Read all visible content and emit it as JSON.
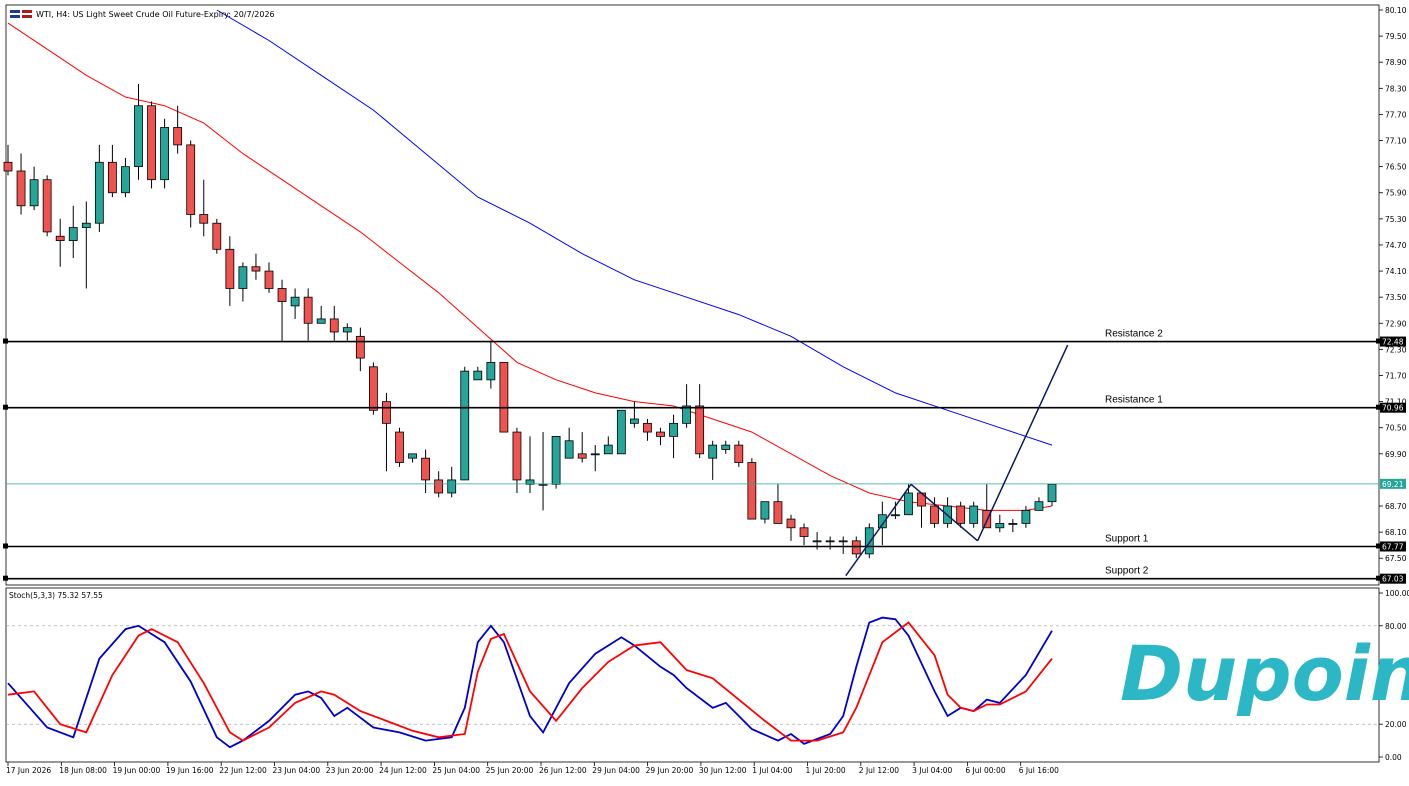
{
  "window": {
    "title": "WTI, H4:  US Light Sweet Crude Oil Future-Expiry: 20/7/2026"
  },
  "colors": {
    "bull": "#26a69a",
    "bear": "#ef5350",
    "ma_fast": "#ff0000",
    "ma_slow": "#0000ff",
    "stoch_k": "#0000cc",
    "stoch_d": "#ff0000",
    "current_price_line": "#26a69a",
    "logo": "#2bb7c6"
  },
  "logo": {
    "text": "Dupoin"
  },
  "chart_data": [
    {
      "type": "candlestick",
      "symbol": "WTI",
      "timeframe": "H4",
      "ylim": [
        67.0,
        80.1
      ],
      "y_ticks": [
        "80.10",
        "79.50",
        "78.90",
        "78.30",
        "77.70",
        "77.10",
        "76.50",
        "75.90",
        "75.30",
        "74.70",
        "74.10",
        "73.50",
        "72.90",
        "72.30",
        "71.70",
        "71.10",
        "70.50",
        "69.90",
        "68.70",
        "68.10",
        "67.50"
      ],
      "x_ticks": [
        "17 Jun 2026",
        "18 Jun 08:00",
        "19 Jun 00:00",
        "19 Jun 16:00",
        "22 Jun 12:00",
        "23 Jun 04:00",
        "23 Jun 20:00",
        "24 Jun 12:00",
        "25 Jun 04:00",
        "25 Jun 20:00",
        "26 Jun 12:00",
        "29 Jun 04:00",
        "29 Jun 20:00",
        "30 Jun 12:00",
        "1 Jul 04:00",
        "1 Jul 20:00",
        "2 Jul 12:00",
        "3 Jul 04:00",
        "6 Jul 00:00",
        "6 Jul 16:00"
      ],
      "candles": [
        [
          76.6,
          76.4,
          77.0,
          76.3
        ],
        [
          76.4,
          75.6,
          76.8,
          75.4
        ],
        [
          75.6,
          76.2,
          76.5,
          75.5
        ],
        [
          76.2,
          75.0,
          76.3,
          74.9
        ],
        [
          74.9,
          74.8,
          75.3,
          74.2
        ],
        [
          74.8,
          75.1,
          75.6,
          74.4
        ],
        [
          75.1,
          75.2,
          75.7,
          73.7
        ],
        [
          75.2,
          76.6,
          77.0,
          75.0
        ],
        [
          76.6,
          75.9,
          77.0,
          75.8
        ],
        [
          75.9,
          76.5,
          76.7,
          75.8
        ],
        [
          76.5,
          77.9,
          78.4,
          76.2
        ],
        [
          77.9,
          76.2,
          78.0,
          76.0
        ],
        [
          76.2,
          77.4,
          77.6,
          76.0
        ],
        [
          77.4,
          77.0,
          77.9,
          76.8
        ],
        [
          77.0,
          75.4,
          77.1,
          75.1
        ],
        [
          75.4,
          75.2,
          76.2,
          74.9
        ],
        [
          75.2,
          74.6,
          75.3,
          74.5
        ],
        [
          74.6,
          73.7,
          74.9,
          73.3
        ],
        [
          73.7,
          74.2,
          74.3,
          73.4
        ],
        [
          74.2,
          74.1,
          74.5,
          73.9
        ],
        [
          74.1,
          73.7,
          74.3,
          73.6
        ],
        [
          73.7,
          73.4,
          73.9,
          72.5
        ],
        [
          73.3,
          73.5,
          73.7,
          73.0
        ],
        [
          73.5,
          72.9,
          73.7,
          72.5
        ],
        [
          72.9,
          73.0,
          73.3,
          72.9
        ],
        [
          73.0,
          72.7,
          73.3,
          72.5
        ],
        [
          72.7,
          72.8,
          72.9,
          72.5
        ],
        [
          72.6,
          72.1,
          72.8,
          71.8
        ],
        [
          71.9,
          70.9,
          72.0,
          70.8
        ],
        [
          71.1,
          70.6,
          71.3,
          69.5
        ],
        [
          70.4,
          69.7,
          70.5,
          69.6
        ],
        [
          69.8,
          69.9,
          69.9,
          69.7
        ],
        [
          69.8,
          69.3,
          70.0,
          69.0
        ],
        [
          69.3,
          69.0,
          69.5,
          68.9
        ],
        [
          69.0,
          69.3,
          69.6,
          68.9
        ],
        [
          69.3,
          71.8,
          71.9,
          69.3
        ],
        [
          71.6,
          71.8,
          71.9,
          71.6
        ],
        [
          71.6,
          72.0,
          72.5,
          71.4
        ],
        [
          72.0,
          70.4,
          72.0,
          70.4
        ],
        [
          70.4,
          69.3,
          70.5,
          69.0
        ],
        [
          69.2,
          69.3,
          70.3,
          69.0
        ],
        [
          69.2,
          69.2,
          70.4,
          68.6
        ],
        [
          69.2,
          70.3,
          70.3,
          69.1
        ],
        [
          69.8,
          70.2,
          70.5,
          69.9
        ],
        [
          69.9,
          69.8,
          70.4,
          69.7
        ],
        [
          69.9,
          69.9,
          70.1,
          69.5
        ],
        [
          69.9,
          70.1,
          70.3,
          69.9
        ],
        [
          69.9,
          70.9,
          70.9,
          69.9
        ],
        [
          70.6,
          70.7,
          71.1,
          70.5
        ],
        [
          70.6,
          70.4,
          70.7,
          70.2
        ],
        [
          70.4,
          70.3,
          70.5,
          70.1
        ],
        [
          70.3,
          70.6,
          70.8,
          69.8
        ],
        [
          70.6,
          71.0,
          71.5,
          70.5
        ],
        [
          71.0,
          69.9,
          71.5,
          69.8
        ],
        [
          69.8,
          70.1,
          70.2,
          69.3
        ],
        [
          70.0,
          70.1,
          70.2,
          69.9
        ],
        [
          70.1,
          69.7,
          70.2,
          69.6
        ],
        [
          69.7,
          68.4,
          69.8,
          68.4
        ],
        [
          68.4,
          68.8,
          68.8,
          68.3
        ],
        [
          68.8,
          68.3,
          69.2,
          68.3
        ],
        [
          68.4,
          68.2,
          68.5,
          67.9
        ],
        [
          68.2,
          68.0,
          68.3,
          67.8
        ],
        [
          67.9,
          67.9,
          68.1,
          67.7
        ],
        [
          67.9,
          67.9,
          68.0,
          67.7
        ],
        [
          67.9,
          67.9,
          68.0,
          67.6
        ],
        [
          67.9,
          67.6,
          68.0,
          67.5
        ],
        [
          67.6,
          68.2,
          68.3,
          67.5
        ],
        [
          68.2,
          68.5,
          68.8,
          67.8
        ],
        [
          68.5,
          68.5,
          68.8,
          68.4
        ],
        [
          68.5,
          69.0,
          69.2,
          68.5
        ],
        [
          69.0,
          68.7,
          69.0,
          68.2
        ],
        [
          68.7,
          68.3,
          68.9,
          68.2
        ],
        [
          68.3,
          68.7,
          68.9,
          68.2
        ],
        [
          68.7,
          68.3,
          68.8,
          68.2
        ],
        [
          68.3,
          68.7,
          68.8,
          68.2
        ],
        [
          68.6,
          68.2,
          69.2,
          68.2
        ],
        [
          68.2,
          68.3,
          68.5,
          68.1
        ],
        [
          68.3,
          68.3,
          68.4,
          68.1
        ],
        [
          68.3,
          68.6,
          68.7,
          68.2
        ],
        [
          68.6,
          68.8,
          68.9,
          68.6
        ],
        [
          68.8,
          69.2,
          69.2,
          68.7
        ]
      ],
      "ma_fast": [
        [
          0,
          79.8
        ],
        [
          3,
          79.2
        ],
        [
          6,
          78.6
        ],
        [
          9,
          78.1
        ],
        [
          12,
          77.9
        ],
        [
          15,
          77.5
        ],
        [
          18,
          76.8
        ],
        [
          21,
          76.2
        ],
        [
          24,
          75.6
        ],
        [
          27,
          75.0
        ],
        [
          30,
          74.3
        ],
        [
          33,
          73.6
        ],
        [
          36,
          72.8
        ],
        [
          39,
          72.0
        ],
        [
          42,
          71.6
        ],
        [
          45,
          71.3
        ],
        [
          48,
          71.1
        ],
        [
          51,
          71.0
        ],
        [
          54,
          70.7
        ],
        [
          57,
          70.4
        ],
        [
          60,
          69.9
        ],
        [
          63,
          69.4
        ],
        [
          66,
          69.0
        ],
        [
          69,
          68.8
        ],
        [
          72,
          68.7
        ],
        [
          75,
          68.6
        ],
        [
          78,
          68.6
        ],
        [
          80,
          68.7
        ]
      ],
      "ma_slow": [
        [
          16,
          80.1
        ],
        [
          20,
          79.4
        ],
        [
          24,
          78.6
        ],
        [
          28,
          77.8
        ],
        [
          32,
          76.8
        ],
        [
          36,
          75.8
        ],
        [
          40,
          75.2
        ],
        [
          44,
          74.5
        ],
        [
          48,
          73.9
        ],
        [
          52,
          73.5
        ],
        [
          56,
          73.1
        ],
        [
          60,
          72.6
        ],
        [
          64,
          71.9
        ],
        [
          68,
          71.3
        ],
        [
          72,
          70.9
        ],
        [
          76,
          70.5
        ],
        [
          80,
          70.1
        ]
      ],
      "levels": [
        {
          "label": "Resistance 2",
          "price": 72.48,
          "tag": "72.48"
        },
        {
          "label": "Resistance 1",
          "price": 70.96,
          "tag": "70.96"
        },
        {
          "label": "Support 1",
          "price": 67.77,
          "tag": "67.77"
        },
        {
          "label": "Support 2",
          "price": 67.03,
          "tag": "67.03"
        }
      ],
      "current_price": {
        "price": 69.21,
        "tag": "69.21"
      },
      "pattern_lines": [
        [
          [
            64.2,
            67.1
          ],
          [
            69.2,
            69.2
          ]
        ],
        [
          [
            69.2,
            69.2
          ],
          [
            74.3,
            67.9
          ]
        ],
        [
          [
            74.3,
            67.9
          ],
          [
            81.2,
            72.4
          ]
        ]
      ]
    },
    {
      "type": "line",
      "label": "Stoch(5,3,3) 75.32 57.55",
      "ylim": [
        0,
        100
      ],
      "y_ticks": [
        "100.00",
        "80.00",
        "20.00",
        "0.00"
      ],
      "levels": [
        80,
        20
      ],
      "series": [
        {
          "values": [
            [
              0,
              45
            ],
            [
              3,
              18
            ],
            [
              5,
              12
            ],
            [
              7,
              60
            ],
            [
              9,
              78
            ],
            [
              10,
              80
            ],
            [
              12,
              70
            ],
            [
              14,
              46
            ],
            [
              16,
              12
            ],
            [
              17,
              6
            ],
            [
              18,
              10
            ],
            [
              20,
              22
            ],
            [
              22,
              38
            ],
            [
              23,
              40
            ],
            [
              24,
              36
            ],
            [
              25,
              25
            ],
            [
              26,
              30
            ],
            [
              28,
              18
            ],
            [
              30,
              15
            ],
            [
              32,
              10
            ],
            [
              34,
              12
            ],
            [
              35,
              30
            ],
            [
              36,
              70
            ],
            [
              37,
              80
            ],
            [
              38,
              70
            ],
            [
              40,
              25
            ],
            [
              41,
              15
            ],
            [
              43,
              45
            ],
            [
              45,
              63
            ],
            [
              47,
              73
            ],
            [
              48,
              68
            ],
            [
              50,
              55
            ],
            [
              51,
              50
            ],
            [
              52,
              42
            ],
            [
              54,
              30
            ],
            [
              55,
              33
            ],
            [
              57,
              17
            ],
            [
              59,
              10
            ],
            [
              60,
              14
            ],
            [
              61,
              8
            ],
            [
              63,
              14
            ],
            [
              64,
              25
            ],
            [
              65,
              55
            ],
            [
              66,
              82
            ],
            [
              67,
              85
            ],
            [
              68,
              84
            ],
            [
              69,
              74
            ],
            [
              71,
              40
            ],
            [
              72,
              25
            ],
            [
              73,
              30
            ],
            [
              74,
              28
            ],
            [
              75,
              35
            ],
            [
              76,
              33
            ],
            [
              78,
              50
            ],
            [
              80,
              77
            ]
          ]
        },
        {
          "values": [
            [
              0,
              38
            ],
            [
              2,
              40
            ],
            [
              4,
              20
            ],
            [
              6,
              15
            ],
            [
              8,
              50
            ],
            [
              10,
              74
            ],
            [
              11,
              78
            ],
            [
              13,
              70
            ],
            [
              15,
              45
            ],
            [
              17,
              15
            ],
            [
              18,
              10
            ],
            [
              20,
              18
            ],
            [
              22,
              33
            ],
            [
              24,
              40
            ],
            [
              25,
              38
            ],
            [
              27,
              28
            ],
            [
              29,
              22
            ],
            [
              31,
              16
            ],
            [
              33,
              12
            ],
            [
              35,
              14
            ],
            [
              36,
              52
            ],
            [
              37,
              72
            ],
            [
              38,
              75
            ],
            [
              40,
              40
            ],
            [
              42,
              22
            ],
            [
              44,
              42
            ],
            [
              46,
              58
            ],
            [
              48,
              68
            ],
            [
              50,
              70
            ],
            [
              52,
              53
            ],
            [
              54,
              48
            ],
            [
              56,
              35
            ],
            [
              58,
              22
            ],
            [
              59,
              16
            ],
            [
              60,
              10
            ],
            [
              62,
              10
            ],
            [
              64,
              15
            ],
            [
              65,
              30
            ],
            [
              67,
              70
            ],
            [
              69,
              82
            ],
            [
              71,
              62
            ],
            [
              72,
              38
            ],
            [
              73,
              30
            ],
            [
              74,
              28
            ],
            [
              75,
              32
            ],
            [
              76,
              32
            ],
            [
              78,
              40
            ],
            [
              80,
              60
            ]
          ]
        }
      ]
    }
  ]
}
